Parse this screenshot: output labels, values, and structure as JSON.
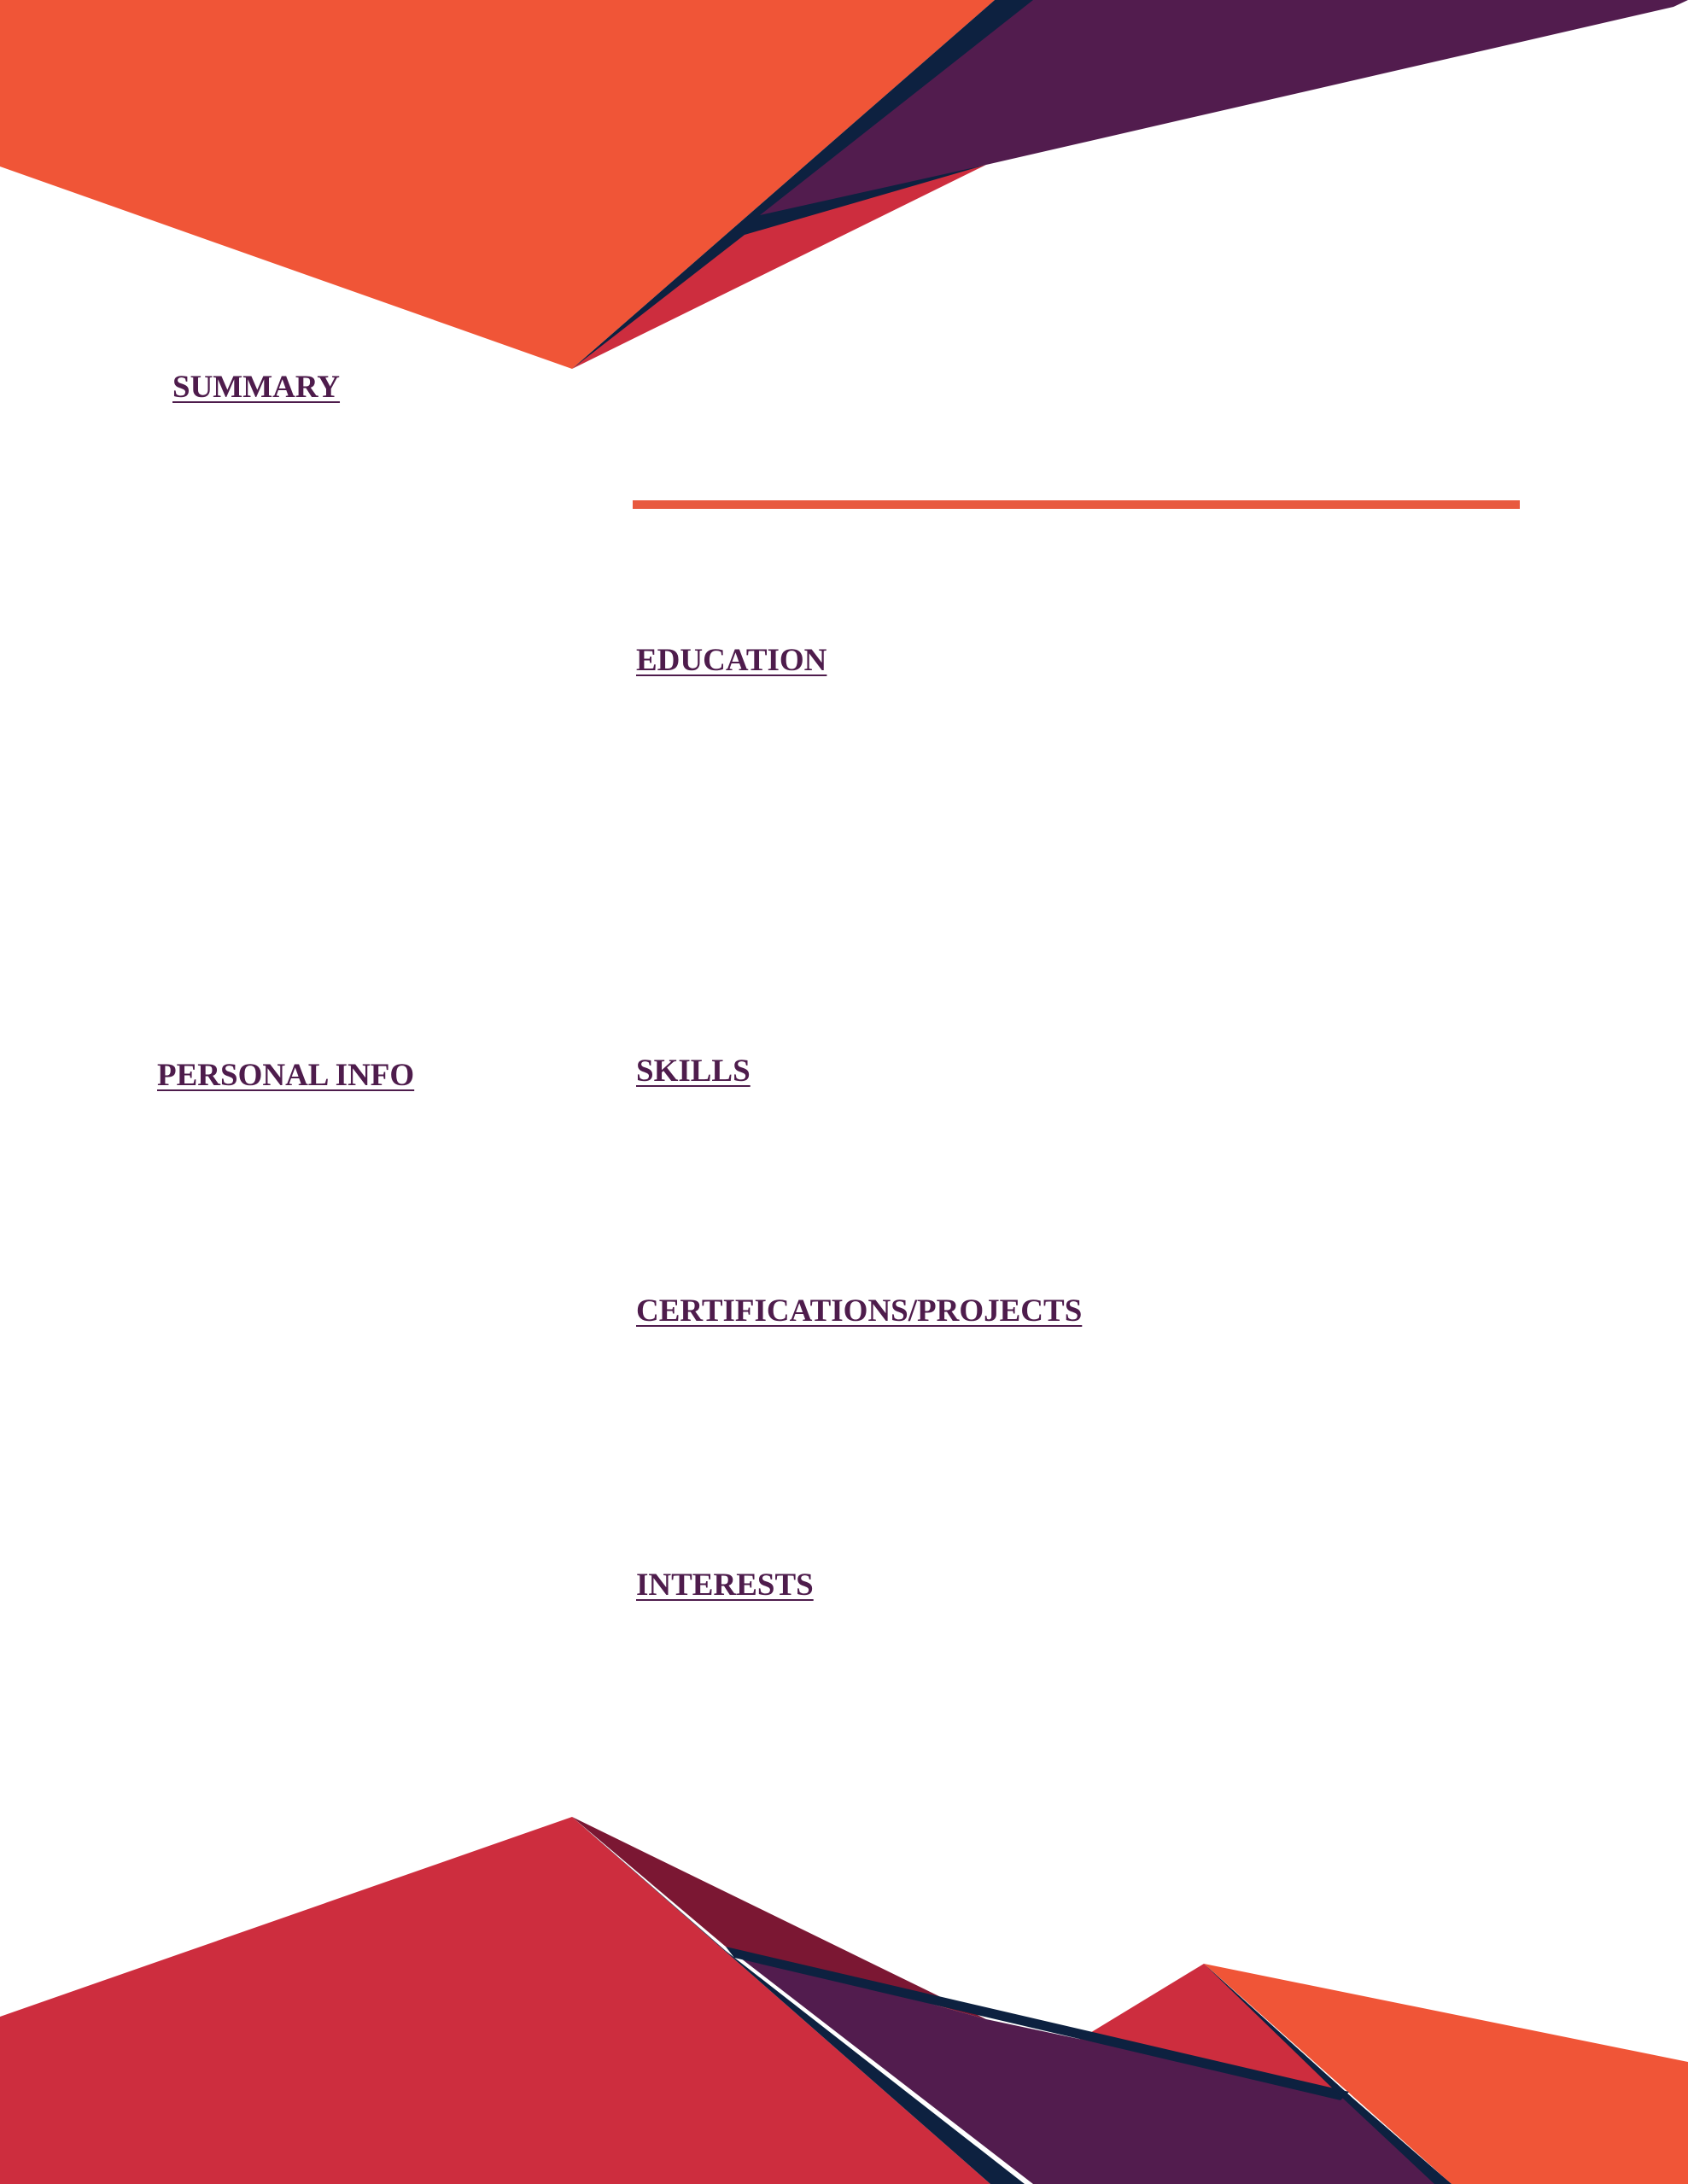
{
  "sections": {
    "summary": "SUMMARY",
    "education": "EDUCATION",
    "personal_info": "PERSONAL INFO",
    "skills": "SKILLS",
    "certifications_projects": "CERTIFICATIONS/PROJECTS",
    "interests": "INTERESTS"
  },
  "colors": {
    "heading": "#4e1c4c",
    "accent_orange": "#f05537",
    "accent_red": "#cd2d3e",
    "accent_purple": "#521c4e",
    "accent_navy": "#0d2140",
    "accent_maroon": "#7b1733",
    "divider": "#e8593f"
  }
}
